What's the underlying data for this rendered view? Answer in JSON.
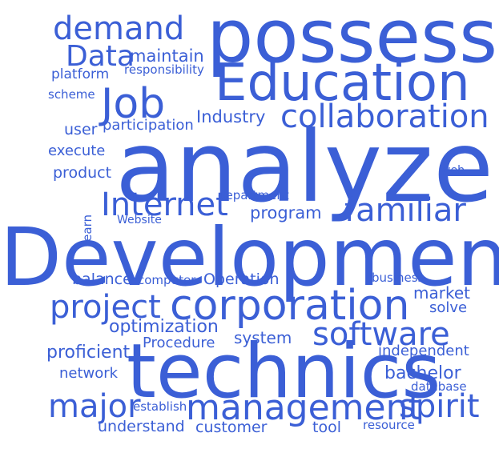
{
  "color": "#3b5fd6",
  "words": [
    {
      "text": "possess",
      "weight": 0.82
    },
    {
      "text": "demand",
      "weight": 0.34
    },
    {
      "text": "Data",
      "weight": 0.32
    },
    {
      "text": "maintain",
      "weight": 0.2
    },
    {
      "text": "platform",
      "weight": 0.14
    },
    {
      "text": "responsibility",
      "weight": 0.12
    },
    {
      "text": "Education",
      "weight": 0.6
    },
    {
      "text": "scheme",
      "weight": 0.12
    },
    {
      "text": "Job",
      "weight": 0.46
    },
    {
      "text": "collaboration",
      "weight": 0.36
    },
    {
      "text": "Industry",
      "weight": 0.18
    },
    {
      "text": "user",
      "weight": 0.16
    },
    {
      "text": "participation",
      "weight": 0.15
    },
    {
      "text": "execute",
      "weight": 0.14
    },
    {
      "text": "analyze",
      "weight": 1.0
    },
    {
      "text": "product",
      "weight": 0.16
    },
    {
      "text": "web",
      "weight": 0.11
    },
    {
      "text": "learn",
      "weight": 0.1
    },
    {
      "text": "Internet",
      "weight": 0.36
    },
    {
      "text": "department",
      "weight": 0.11
    },
    {
      "text": "familiar",
      "weight": 0.36
    },
    {
      "text": "Website",
      "weight": 0.11
    },
    {
      "text": "program",
      "weight": 0.19
    },
    {
      "text": "Development",
      "weight": 0.88
    },
    {
      "text": "balance",
      "weight": 0.16
    },
    {
      "text": "computer",
      "weight": 0.12
    },
    {
      "text": "Operation",
      "weight": 0.16
    },
    {
      "text": "business",
      "weight": 0.12
    },
    {
      "text": "market",
      "weight": 0.17
    },
    {
      "text": "project",
      "weight": 0.38
    },
    {
      "text": "corporation",
      "weight": 0.5
    },
    {
      "text": "solve",
      "weight": 0.15
    },
    {
      "text": "optimization",
      "weight": 0.2
    },
    {
      "text": "software",
      "weight": 0.36
    },
    {
      "text": "system",
      "weight": 0.18
    },
    {
      "text": "Procedure",
      "weight": 0.16
    },
    {
      "text": "proficient",
      "weight": 0.2
    },
    {
      "text": "independent",
      "weight": 0.16
    },
    {
      "text": "technics",
      "weight": 0.78
    },
    {
      "text": "network",
      "weight": 0.15
    },
    {
      "text": "bachelor",
      "weight": 0.2
    },
    {
      "text": "database",
      "weight": 0.12
    },
    {
      "text": "major",
      "weight": 0.4
    },
    {
      "text": "establish",
      "weight": 0.13
    },
    {
      "text": "management",
      "weight": 0.46
    },
    {
      "text": "spirit",
      "weight": 0.4
    },
    {
      "text": "understand",
      "weight": 0.17
    },
    {
      "text": "customer",
      "weight": 0.16
    },
    {
      "text": "tool",
      "weight": 0.15
    },
    {
      "text": "resource",
      "weight": 0.13
    }
  ]
}
